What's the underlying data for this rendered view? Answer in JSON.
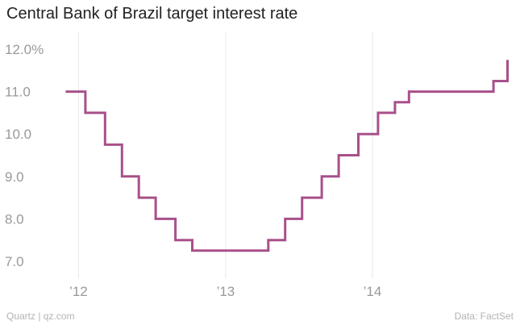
{
  "title": "Central Bank of Brazil target interest rate",
  "footer": {
    "source_left": "Quartz | qz.com",
    "source_right": "Data: FactSet"
  },
  "colors": {
    "line": "#a8508a",
    "grid": "#e8e8e8",
    "text": "#999999"
  },
  "chart_data": {
    "type": "line",
    "step": true,
    "title": "Central Bank of Brazil target interest rate",
    "xlabel": "",
    "ylabel": "",
    "ylim": [
      6.6,
      12.4
    ],
    "xlim": [
      "2011-10-10",
      "2014-12-10"
    ],
    "y_ticks": [
      7.0,
      8.0,
      9.0,
      10.0,
      11.0,
      12.0
    ],
    "y_tick_labels": [
      "7.0",
      "8.0",
      "9.0",
      "10.0",
      "11.0",
      "12.0%"
    ],
    "x_ticks": [
      "2012-01-01",
      "2013-01-01",
      "2014-01-01"
    ],
    "x_tick_labels": [
      "’12",
      "’13",
      "’14"
    ],
    "grid": "vertical",
    "series": [
      {
        "x": [
          "2011-11-30",
          "2012-01-18",
          "2012-03-07",
          "2012-04-18",
          "2012-05-30",
          "2012-07-11",
          "2012-08-29",
          "2012-10-10",
          "2013-04-17",
          "2013-05-29",
          "2013-07-10",
          "2013-08-28",
          "2013-10-09",
          "2013-11-27",
          "2014-01-15",
          "2014-02-26",
          "2014-04-02",
          "2014-10-29",
          "2014-12-03"
        ],
        "y": [
          11.0,
          10.5,
          9.75,
          9.0,
          8.5,
          8.0,
          7.5,
          7.25,
          7.5,
          8.0,
          8.5,
          9.0,
          9.5,
          10.0,
          10.5,
          10.75,
          11.0,
          11.25,
          11.75
        ]
      }
    ]
  }
}
